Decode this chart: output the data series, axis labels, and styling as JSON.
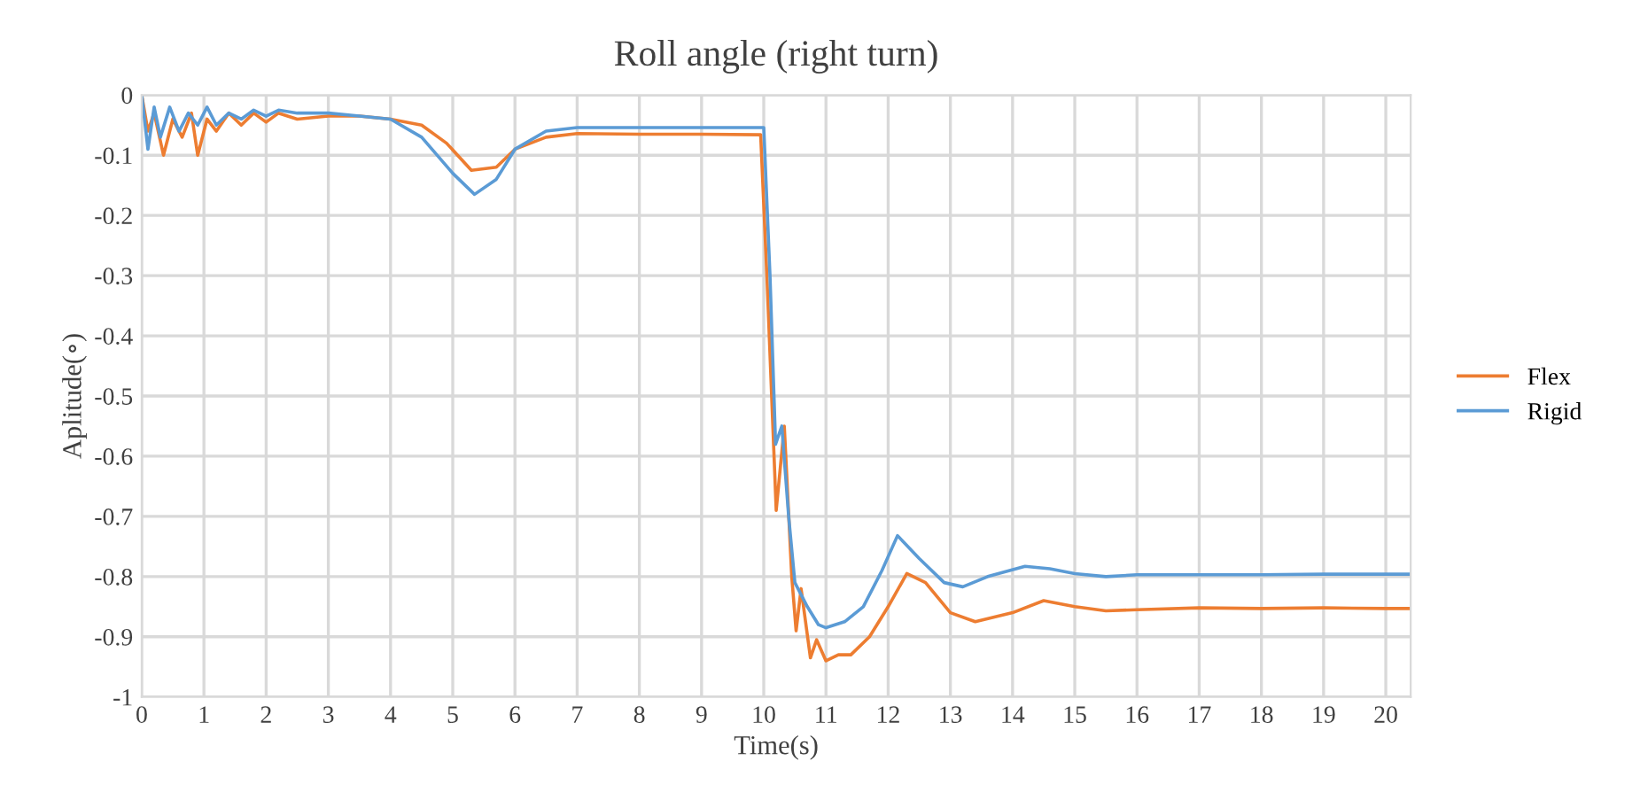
{
  "chart_data": {
    "type": "line",
    "title": "Roll angle (right turn)",
    "xlabel": "Time(s)",
    "ylabel": "Aplitude(∘)",
    "xlim": [
      0,
      20.4
    ],
    "ylim": [
      -1,
      0
    ],
    "xticks": [
      0,
      1,
      2,
      3,
      4,
      5,
      6,
      7,
      8,
      9,
      10,
      11,
      12,
      13,
      14,
      15,
      16,
      17,
      18,
      19,
      20
    ],
    "yticks": [
      {
        "value": -1,
        "label": "-1"
      },
      -0.9,
      -0.8,
      -0.7,
      -0.6,
      -0.5,
      -0.4,
      -0.3,
      -0.2,
      -0.1,
      0
    ],
    "grid": true,
    "legend": "right",
    "marker": "none",
    "line_style": "solid",
    "series": [
      {
        "name": "Flex",
        "color": "#ed7d31",
        "x": [
          0,
          0.1,
          0.2,
          0.35,
          0.5,
          0.65,
          0.8,
          0.9,
          1.05,
          1.2,
          1.4,
          1.6,
          1.8,
          2.0,
          2.2,
          2.5,
          3.0,
          3.5,
          4.0,
          4.5,
          4.9,
          5.3,
          5.7,
          6.0,
          6.5,
          7.0,
          8.0,
          9.0,
          9.95,
          10.05,
          10.2,
          10.33,
          10.45,
          10.52,
          10.6,
          10.75,
          10.85,
          11.0,
          11.2,
          11.4,
          11.7,
          12.0,
          12.3,
          12.6,
          13.0,
          13.4,
          14.0,
          14.5,
          15.0,
          15.5,
          16.0,
          17.0,
          18.0,
          19.0,
          20.0,
          20.4
        ],
        "values": [
          0,
          -0.06,
          -0.03,
          -0.1,
          -0.04,
          -0.07,
          -0.03,
          -0.1,
          -0.04,
          -0.06,
          -0.03,
          -0.05,
          -0.03,
          -0.045,
          -0.03,
          -0.04,
          -0.035,
          -0.035,
          -0.04,
          -0.05,
          -0.08,
          -0.125,
          -0.12,
          -0.09,
          -0.07,
          -0.064,
          -0.065,
          -0.065,
          -0.066,
          -0.3,
          -0.69,
          -0.55,
          -0.8,
          -0.89,
          -0.82,
          -0.935,
          -0.905,
          -0.94,
          -0.93,
          -0.93,
          -0.9,
          -0.85,
          -0.795,
          -0.81,
          -0.86,
          -0.875,
          -0.86,
          -0.84,
          -0.85,
          -0.857,
          -0.855,
          -0.852,
          -0.853,
          -0.852,
          -0.853,
          -0.853
        ]
      },
      {
        "name": "Rigid",
        "color": "#5b9bd5",
        "x": [
          0,
          0.1,
          0.2,
          0.3,
          0.45,
          0.6,
          0.75,
          0.9,
          1.05,
          1.2,
          1.4,
          1.6,
          1.8,
          2.0,
          2.2,
          2.5,
          3.0,
          3.5,
          4.0,
          4.5,
          5.0,
          5.35,
          5.7,
          6.0,
          6.5,
          7.0,
          8.0,
          9.0,
          10.0,
          10.1,
          10.19,
          10.29,
          10.4,
          10.5,
          10.7,
          10.88,
          11.0,
          11.3,
          11.6,
          11.9,
          12.15,
          12.5,
          12.9,
          13.2,
          13.6,
          14.2,
          14.6,
          15.0,
          15.5,
          16.0,
          17.0,
          18.0,
          19.0,
          20.0,
          20.4
        ],
        "values": [
          0,
          -0.09,
          -0.02,
          -0.07,
          -0.02,
          -0.06,
          -0.03,
          -0.05,
          -0.02,
          -0.05,
          -0.03,
          -0.04,
          -0.025,
          -0.035,
          -0.025,
          -0.03,
          -0.03,
          -0.035,
          -0.04,
          -0.07,
          -0.13,
          -0.165,
          -0.14,
          -0.09,
          -0.06,
          -0.054,
          -0.054,
          -0.054,
          -0.054,
          -0.3,
          -0.58,
          -0.55,
          -0.7,
          -0.81,
          -0.85,
          -0.88,
          -0.885,
          -0.875,
          -0.85,
          -0.79,
          -0.732,
          -0.77,
          -0.81,
          -0.817,
          -0.8,
          -0.783,
          -0.787,
          -0.795,
          -0.8,
          -0.797,
          -0.797,
          -0.797,
          -0.796,
          -0.796,
          -0.796
        ]
      }
    ]
  }
}
